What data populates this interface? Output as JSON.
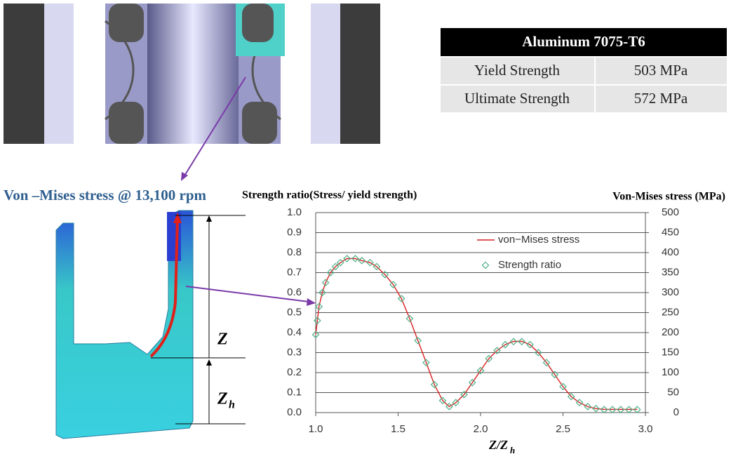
{
  "chart_data": {
    "type": "line",
    "y_label": "Strength ratio(Stress/ yield strength)",
    "y2_label": "Von-Mises stress (MPa)",
    "x_label": "Z/Z",
    "x_label_sub": "h",
    "x": [
      1.0,
      1.01,
      1.02,
      1.04,
      1.06,
      1.09,
      1.12,
      1.15,
      1.19,
      1.24,
      1.28,
      1.33,
      1.37,
      1.42,
      1.47,
      1.52,
      1.57,
      1.62,
      1.67,
      1.72,
      1.77,
      1.81,
      1.85,
      1.9,
      1.95,
      2.0,
      2.05,
      2.1,
      2.15,
      2.2,
      2.25,
      2.3,
      2.35,
      2.4,
      2.45,
      2.5,
      2.55,
      2.6,
      2.65,
      2.7,
      2.75,
      2.8,
      2.85,
      2.9,
      2.95
    ],
    "series": [
      {
        "name": "von−Mises stress",
        "color": "#d62020",
        "marker": "line",
        "axis": "y2",
        "values": [
          195,
          230,
          265,
          300,
          325,
          350,
          365,
          375,
          385,
          385,
          380,
          375,
          365,
          345,
          320,
          285,
          235,
          180,
          125,
          70,
          30,
          15,
          25,
          45,
          75,
          105,
          135,
          155,
          170,
          178,
          178,
          170,
          150,
          125,
          95,
          65,
          40,
          25,
          15,
          10,
          8,
          8,
          8,
          8,
          8
        ]
      },
      {
        "name": "Strength ratio",
        "color": "#4caf86",
        "marker": "diamond",
        "values": [
          0.39,
          0.46,
          0.53,
          0.6,
          0.65,
          0.7,
          0.73,
          0.75,
          0.77,
          0.77,
          0.76,
          0.75,
          0.73,
          0.69,
          0.64,
          0.57,
          0.47,
          0.36,
          0.25,
          0.14,
          0.06,
          0.03,
          0.05,
          0.09,
          0.15,
          0.21,
          0.27,
          0.31,
          0.34,
          0.355,
          0.355,
          0.34,
          0.3,
          0.25,
          0.19,
          0.13,
          0.08,
          0.05,
          0.03,
          0.02,
          0.015,
          0.015,
          0.015,
          0.015,
          0.015
        ]
      }
    ],
    "xlim": [
      1.0,
      3.0
    ],
    "xticks": [
      {
        "value": 1.0,
        "label": "1.0"
      },
      {
        "value": 1.5,
        "label": "1.5"
      },
      {
        "value": 2.0,
        "label": "2.0"
      },
      {
        "value": 2.5,
        "label": "2.5"
      },
      {
        "value": 3.0,
        "label": "3.0"
      }
    ],
    "ylim": [
      0,
      1.0
    ],
    "yticks": [
      {
        "value": 0,
        "label": "0.0"
      },
      0.1,
      0.2,
      0.3,
      0.4,
      0.5,
      0.6,
      0.7,
      0.8,
      0.9,
      {
        "value": 1.0,
        "label": "1.0"
      }
    ],
    "y2lim": [
      0,
      500
    ],
    "y2ticks": [
      0,
      50,
      100,
      150,
      200,
      250,
      300,
      350,
      400,
      450,
      500
    ],
    "grid": true,
    "legend": "upper-center"
  },
  "table": {
    "title": "Aluminum 7075-T6",
    "rows": [
      [
        "Yield Strength",
        "503 MPa"
      ],
      [
        "Ultimate Strength",
        "572 MPa"
      ]
    ]
  },
  "figure": {
    "caption": "Von –Mises stress @ 13,100 rpm",
    "label_z": "Z",
    "label_zh": "Z",
    "label_zh_sub": "h"
  }
}
